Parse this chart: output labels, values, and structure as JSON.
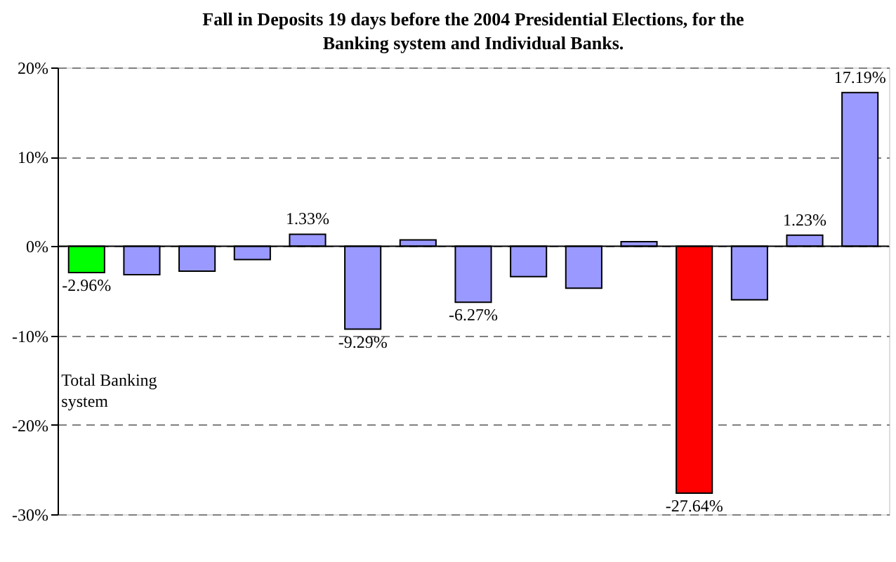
{
  "chart_data": {
    "type": "bar",
    "title": "Fall in Deposits 19 days before the 2004 Presidential Elections, for the\nBanking system and Individual Banks.",
    "categories": [
      null,
      null,
      null,
      null,
      null,
      null,
      null,
      null,
      null,
      null,
      null,
      null,
      null,
      null,
      null
    ],
    "values": [
      -2.96,
      -3.2,
      -2.8,
      -1.5,
      1.33,
      -9.29,
      0.7,
      -6.27,
      -3.4,
      -4.7,
      0.5,
      -27.64,
      -6.0,
      1.23,
      17.19
    ],
    "colors": [
      "#00ff00",
      "#9999ff",
      "#9999ff",
      "#9999ff",
      "#9999ff",
      "#9999ff",
      "#9999ff",
      "#9999ff",
      "#9999ff",
      "#9999ff",
      "#9999ff",
      "#ff0000",
      "#9999ff",
      "#9999ff",
      "#9999ff"
    ],
    "value_labels": [
      "-2.96%",
      null,
      null,
      null,
      "1.33%",
      "-9.29%",
      null,
      "-6.27%",
      null,
      null,
      null,
      "-27.64%",
      null,
      "1.23%",
      "17.19%"
    ],
    "annotations": [
      "Total Banking\nsystem"
    ],
    "ylim": [
      -30,
      20
    ],
    "yticks": [
      {
        "value": -30,
        "label": "-30%"
      },
      {
        "value": -20,
        "label": "-20%"
      },
      {
        "value": -10,
        "label": "-10%"
      },
      {
        "value": 0,
        "label": "0%"
      },
      {
        "value": 10,
        "label": "10%"
      },
      {
        "value": 20,
        "label": "20%"
      }
    ],
    "grid": "y"
  }
}
